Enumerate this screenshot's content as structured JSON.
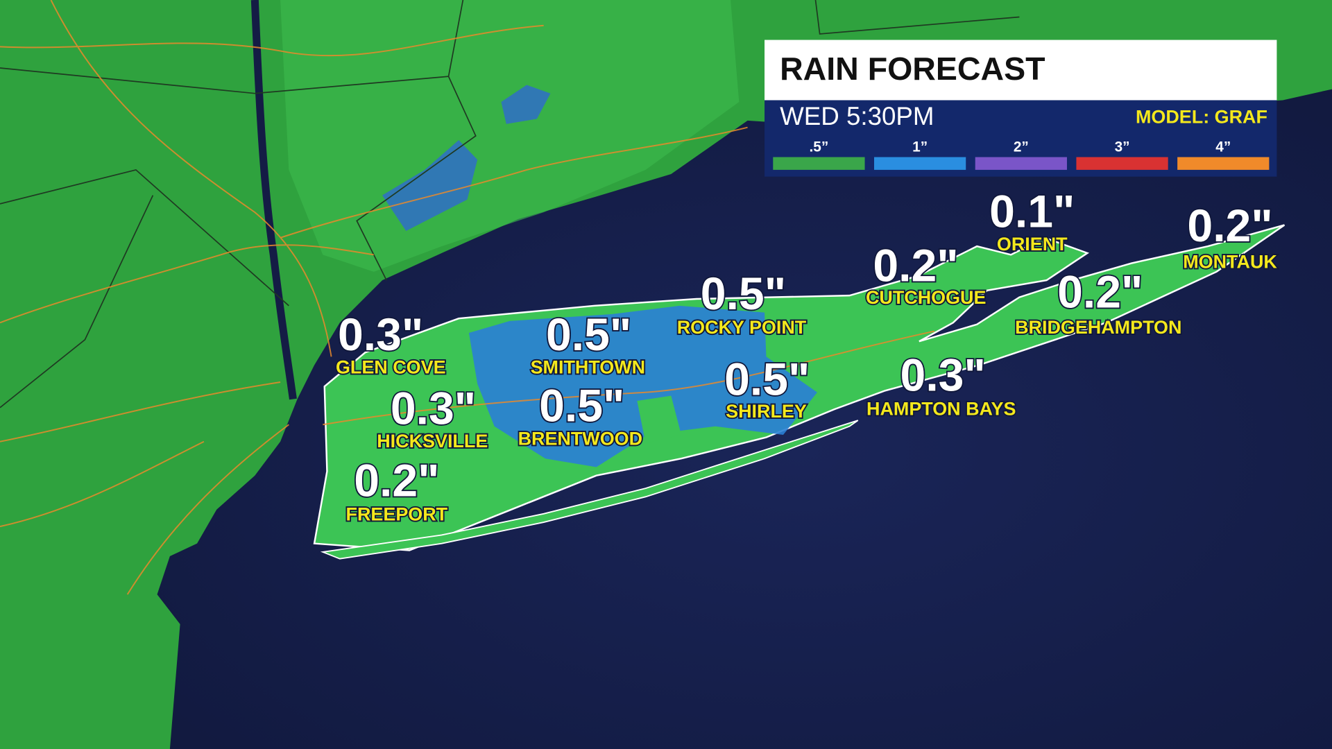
{
  "header": {
    "title": "RAIN FORECAST",
    "time": "WED 5:30PM",
    "model": "MODEL: GRAF"
  },
  "legend": [
    {
      "label": ".5”",
      "color": "#3aa64a"
    },
    {
      "label": "1”",
      "color": "#2a8ee0"
    },
    {
      "label": "2”",
      "color": "#7a55c8"
    },
    {
      "label": "3”",
      "color": "#d93232"
    },
    {
      "label": "4”",
      "color": "#f08a2a"
    }
  ],
  "locations": [
    {
      "name": "GLEN COVE",
      "amount": "0.3\""
    },
    {
      "name": "SMITHTOWN",
      "amount": "0.5\""
    },
    {
      "name": "ROCKY POINT",
      "amount": "0.5\""
    },
    {
      "name": "CUTCHOGUE",
      "amount": "0.2\""
    },
    {
      "name": "ORIENT",
      "amount": "0.1\""
    },
    {
      "name": "MONTAUK",
      "amount": "0.2\""
    },
    {
      "name": "BRIDGEHAMPTON",
      "amount": "0.2\""
    },
    {
      "name": "HICKSVILLE",
      "amount": "0.3\""
    },
    {
      "name": "BRENTWOOD",
      "amount": "0.5\""
    },
    {
      "name": "SHIRLEY",
      "amount": "0.5\""
    },
    {
      "name": "HAMPTON BAYS",
      "amount": "0.3\""
    },
    {
      "name": "FREEPORT",
      "amount": "0.2\""
    }
  ]
}
